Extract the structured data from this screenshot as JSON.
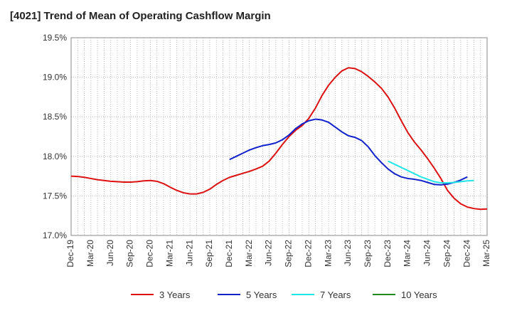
{
  "chart_data": {
    "type": "line",
    "title": "[4021]  Trend of Mean of Operating Cashflow Margin",
    "xlabel": "",
    "ylabel": "",
    "ylim": [
      17.0,
      19.5
    ],
    "y_ticks": [
      "17.0%",
      "17.5%",
      "18.0%",
      "18.5%",
      "19.0%",
      "19.5%"
    ],
    "y_tick_values": [
      17.0,
      17.5,
      18.0,
      18.5,
      19.0,
      19.5
    ],
    "x_ticks": [
      "Dec-19",
      "Mar-20",
      "Jun-20",
      "Sep-20",
      "Dec-20",
      "Mar-21",
      "Jun-21",
      "Sep-21",
      "Dec-21",
      "Mar-22",
      "Jun-22",
      "Sep-22",
      "Dec-22",
      "Mar-23",
      "Jun-23",
      "Sep-23",
      "Dec-23",
      "Mar-24",
      "Jun-24",
      "Sep-24",
      "Dec-24",
      "Mar-25"
    ],
    "x_months_total": 63,
    "grid": true,
    "legend_position": "bottom",
    "series": [
      {
        "name": "3 Years",
        "color": "#dd1111",
        "start_month": 0,
        "values": [
          17.75,
          17.745,
          17.735,
          17.72,
          17.705,
          17.695,
          17.685,
          17.68,
          17.675,
          17.675,
          17.68,
          17.69,
          17.695,
          17.685,
          17.655,
          17.61,
          17.57,
          17.54,
          17.525,
          17.525,
          17.545,
          17.585,
          17.645,
          17.695,
          17.735,
          17.76,
          17.785,
          17.81,
          17.84,
          17.875,
          17.94,
          18.04,
          18.15,
          18.25,
          18.33,
          18.39,
          18.48,
          18.61,
          18.77,
          18.9,
          19.0,
          19.08,
          19.12,
          19.11,
          19.07,
          19.01,
          18.94,
          18.86,
          18.75,
          18.61,
          18.45,
          18.3,
          18.18,
          18.08,
          17.97,
          17.85,
          17.72,
          17.57,
          17.47,
          17.4,
          17.36,
          17.34,
          17.33,
          17.335
        ]
      },
      {
        "name": "5 Years",
        "color": "#1122cc",
        "start_month": 24,
        "values": [
          17.96,
          18.0,
          18.04,
          18.08,
          18.11,
          18.135,
          18.15,
          18.17,
          18.21,
          18.27,
          18.35,
          18.41,
          18.45,
          18.47,
          18.46,
          18.43,
          18.37,
          18.31,
          18.26,
          18.24,
          18.2,
          18.12,
          18.01,
          17.92,
          17.84,
          17.78,
          17.74,
          17.72,
          17.71,
          17.695,
          17.67,
          17.645,
          17.64,
          17.65,
          17.67,
          17.7,
          17.74
        ]
      },
      {
        "name": "7 Years",
        "color": "#22e5e5",
        "start_month": 48,
        "values": [
          17.94,
          17.9,
          17.86,
          17.82,
          17.78,
          17.74,
          17.71,
          17.68,
          17.665,
          17.665,
          17.67,
          17.68,
          17.69,
          17.695
        ]
      },
      {
        "name": "10 Years",
        "color": "#228822",
        "start_month": 0,
        "values": []
      }
    ]
  }
}
